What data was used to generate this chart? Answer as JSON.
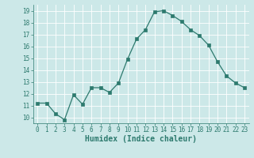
{
  "x": [
    0,
    1,
    2,
    3,
    4,
    5,
    6,
    7,
    8,
    9,
    10,
    11,
    12,
    13,
    14,
    15,
    16,
    17,
    18,
    19,
    20,
    21,
    22,
    23
  ],
  "y": [
    11.2,
    11.2,
    10.3,
    9.8,
    11.9,
    11.1,
    12.5,
    12.5,
    12.1,
    12.9,
    14.9,
    16.6,
    17.4,
    18.9,
    19.0,
    18.6,
    18.1,
    17.4,
    16.9,
    16.1,
    14.7,
    13.5,
    12.9,
    12.5
  ],
  "xlabel": "Humidex (Indice chaleur)",
  "ylim": [
    9.5,
    19.5
  ],
  "xlim": [
    -0.5,
    23.5
  ],
  "yticks": [
    10,
    11,
    12,
    13,
    14,
    15,
    16,
    17,
    18,
    19
  ],
  "xtick_labels": [
    "0",
    "1",
    "2",
    "3",
    "4",
    "5",
    "6",
    "7",
    "8",
    "9",
    "10",
    "11",
    "12",
    "13",
    "14",
    "15",
    "16",
    "17",
    "18",
    "19",
    "20",
    "21",
    "22",
    "23"
  ],
  "line_color": "#2d7a6e",
  "marker_color": "#2d7a6e",
  "bg_color": "#cce8e8",
  "grid_color": "#b8d8d8",
  "tick_label_color": "#2d7a6e",
  "xlabel_color": "#2d7a6e",
  "tick_fontsize": 5.5,
  "xlabel_fontsize": 7.0
}
